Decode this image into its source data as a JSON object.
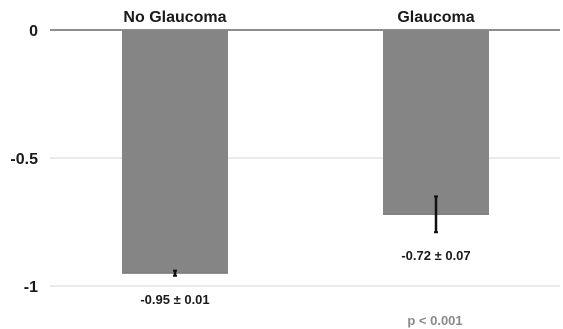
{
  "chart_data": {
    "type": "bar",
    "categories": [
      "No Glaucoma",
      "Glaucoma"
    ],
    "values": [
      -0.95,
      -0.72
    ],
    "errors": [
      0.01,
      0.07
    ],
    "data_labels": [
      "-0.95 ± 0.01",
      "-0.72 ± 0.07"
    ],
    "ylim": [
      -1,
      0
    ],
    "yticks": [
      0,
      -0.5,
      -1
    ],
    "ytick_labels": [
      "0",
      "-0.5",
      "-1"
    ],
    "grid": true,
    "category_labels_position": "top",
    "bar_color": "#858585",
    "annotation": "p < 0.001"
  }
}
